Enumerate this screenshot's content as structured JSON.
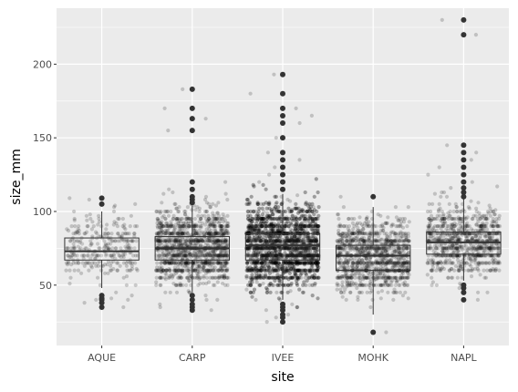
{
  "chart_data": {
    "type": "box",
    "subtype": "boxplot with jittered points",
    "xlabel": "site",
    "ylabel": "size_mm",
    "categories": [
      "AQUE",
      "CARP",
      "IVEE",
      "MOHK",
      "NAPL"
    ],
    "ylim": [
      9,
      238
    ],
    "yticks": [
      50,
      100,
      150,
      200
    ],
    "grid": true,
    "legend": "none",
    "colors": {
      "panel": "#ebebeb",
      "grid": "#ffffff",
      "point": "#000000",
      "box_line": "#333333"
    },
    "boxes": [
      {
        "site": "AQUE",
        "q1": 67,
        "median": 73,
        "q3": 82,
        "whisker_low": 48,
        "whisker_high": 100,
        "outliers": [
          35,
          38,
          40,
          41,
          43,
          105,
          109
        ]
      },
      {
        "site": "CARP",
        "q1": 67,
        "median": 75,
        "q3": 83,
        "whisker_low": 45,
        "whisker_high": 104,
        "outliers": [
          33,
          35,
          37,
          40,
          43,
          106,
          108,
          110,
          115,
          120,
          155,
          163,
          170,
          183
        ]
      },
      {
        "site": "IVEE",
        "q1": 67,
        "median": 77,
        "q3": 85,
        "whisker_low": 40,
        "whisker_high": 112,
        "outliers": [
          25,
          28,
          30,
          33,
          35,
          37,
          115,
          120,
          125,
          130,
          135,
          140,
          150,
          160,
          165,
          170,
          180,
          193
        ]
      },
      {
        "site": "MOHK",
        "q1": 60,
        "median": 70,
        "q3": 77,
        "whisker_low": 30,
        "whisker_high": 103,
        "outliers": [
          18,
          110
        ]
      },
      {
        "site": "NAPL",
        "q1": 71,
        "median": 79,
        "q3": 86,
        "whisker_low": 53,
        "whisker_high": 109,
        "outliers": [
          40,
          45,
          48,
          50,
          110,
          113,
          116,
          120,
          125,
          130,
          135,
          140,
          145,
          220,
          230
        ]
      }
    ],
    "jitter_points": [
      {
        "site": "AQUE",
        "count": 300,
        "center": 75,
        "spread": 11,
        "min": 35,
        "max": 109
      },
      {
        "site": "CARP",
        "count": 1400,
        "center": 75,
        "spread": 12,
        "min": 33,
        "max": 183
      },
      {
        "site": "IVEE",
        "count": 2800,
        "center": 76,
        "spread": 14,
        "min": 25,
        "max": 193
      },
      {
        "site": "MOHK",
        "count": 1200,
        "center": 69,
        "spread": 12,
        "min": 18,
        "max": 110
      },
      {
        "site": "NAPL",
        "count": 900,
        "center": 79,
        "spread": 11,
        "min": 40,
        "max": 230
      }
    ]
  }
}
